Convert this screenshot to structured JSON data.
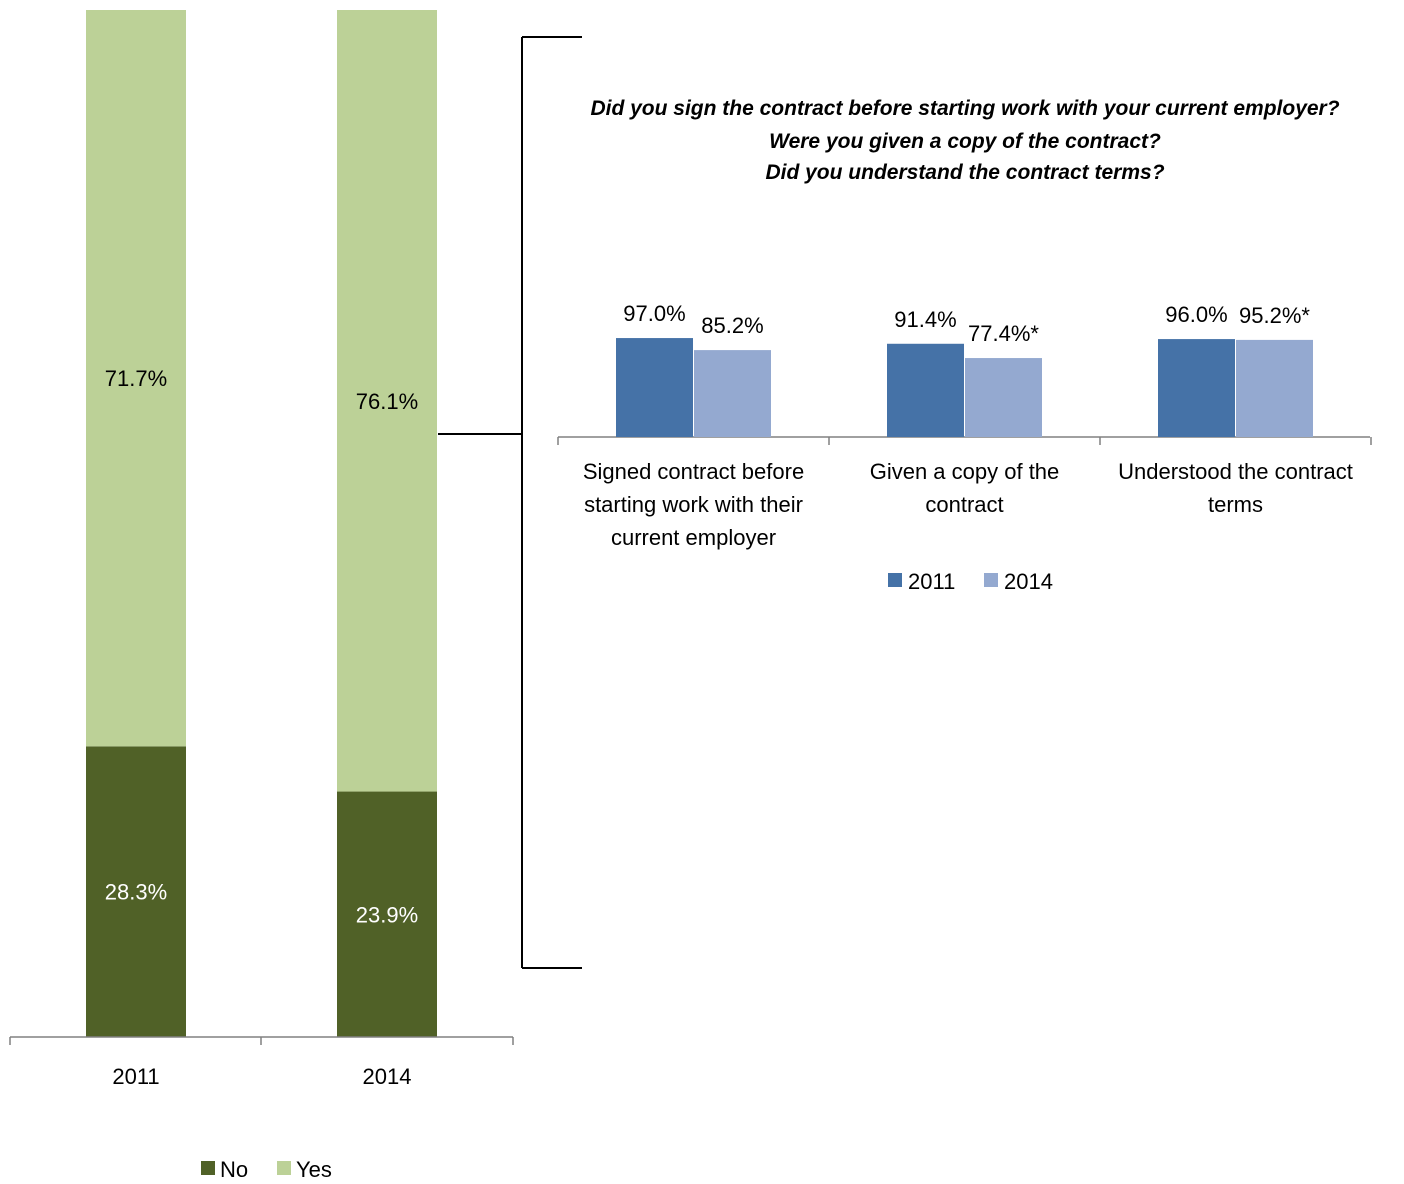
{
  "colors": {
    "no": "#506127",
    "yes": "#bcd197",
    "y2011": "#4572a7",
    "y2014": "#94a9d0",
    "axis": "#808080"
  },
  "chart_data": [
    {
      "type": "bar",
      "stacked": true,
      "categories": [
        "2011",
        "2014"
      ],
      "series": [
        {
          "name": "No",
          "values": [
            28.3,
            23.9
          ],
          "labels": [
            "28.3%",
            "23.9%"
          ]
        },
        {
          "name": "Yes",
          "values": [
            71.7,
            76.1
          ],
          "labels": [
            "71.7%",
            "76.1%"
          ]
        }
      ],
      "ylim": [
        0,
        100
      ],
      "legend": {
        "position": "bottom",
        "entries": [
          "No",
          "Yes"
        ]
      }
    },
    {
      "type": "bar",
      "title_lines": [
        "Did you sign the contract before starting work with your current employer?",
        "Were you given a copy of the contract?",
        "Did you understand the contract terms?"
      ],
      "categories": [
        [
          "Signed contract before",
          "starting work with their",
          "current employer"
        ],
        [
          "Given a copy of the",
          "contract"
        ],
        [
          "Understood the contract",
          "terms"
        ]
      ],
      "series": [
        {
          "name": "2011",
          "values": [
            97.0,
            91.4,
            96.0
          ],
          "labels": [
            "97.0%",
            "91.4%",
            "96.0%"
          ]
        },
        {
          "name": "2014",
          "values": [
            85.2,
            77.4,
            95.2
          ],
          "labels": [
            "85.2%",
            "77.4%*",
            "95.2%*"
          ]
        }
      ],
      "ylim": [
        0,
        100
      ],
      "legend": {
        "position": "bottom",
        "entries": [
          "2011",
          "2014"
        ]
      }
    }
  ]
}
